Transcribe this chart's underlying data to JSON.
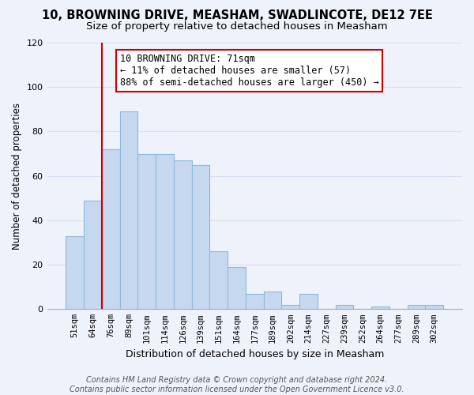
{
  "title": "10, BROWNING DRIVE, MEASHAM, SWADLINCOTE, DE12 7EE",
  "subtitle": "Size of property relative to detached houses in Measham",
  "xlabel": "Distribution of detached houses by size in Measham",
  "ylabel": "Number of detached properties",
  "bar_color": "#c5d8ef",
  "bar_edge_color": "#8fb8dc",
  "background_color": "#eef2fb",
  "grid_color": "#d8dff0",
  "ylim": [
    0,
    120
  ],
  "yticks": [
    0,
    20,
    40,
    60,
    80,
    100,
    120
  ],
  "bin_labels": [
    "51sqm",
    "64sqm",
    "76sqm",
    "89sqm",
    "101sqm",
    "114sqm",
    "126sqm",
    "139sqm",
    "151sqm",
    "164sqm",
    "177sqm",
    "189sqm",
    "202sqm",
    "214sqm",
    "227sqm",
    "239sqm",
    "252sqm",
    "264sqm",
    "277sqm",
    "289sqm",
    "302sqm"
  ],
  "bar_heights": [
    33,
    49,
    72,
    89,
    70,
    70,
    67,
    65,
    26,
    19,
    7,
    8,
    2,
    7,
    0,
    2,
    0,
    1,
    0,
    2,
    2
  ],
  "property_line_bin_index": 1.5,
  "annotation_text": "10 BROWNING DRIVE: 71sqm\n← 11% of detached houses are smaller (57)\n88% of semi-detached houses are larger (450) →",
  "annotation_box_color": "white",
  "annotation_box_edge_color": "#cc0000",
  "red_line_color": "#cc0000",
  "footer_text": "Contains HM Land Registry data © Crown copyright and database right 2024.\nContains public sector information licensed under the Open Government Licence v3.0.",
  "title_fontsize": 10.5,
  "subtitle_fontsize": 9.5,
  "annotation_fontsize": 8.5,
  "footer_fontsize": 7,
  "ylabel_fontsize": 8.5,
  "xlabel_fontsize": 9
}
